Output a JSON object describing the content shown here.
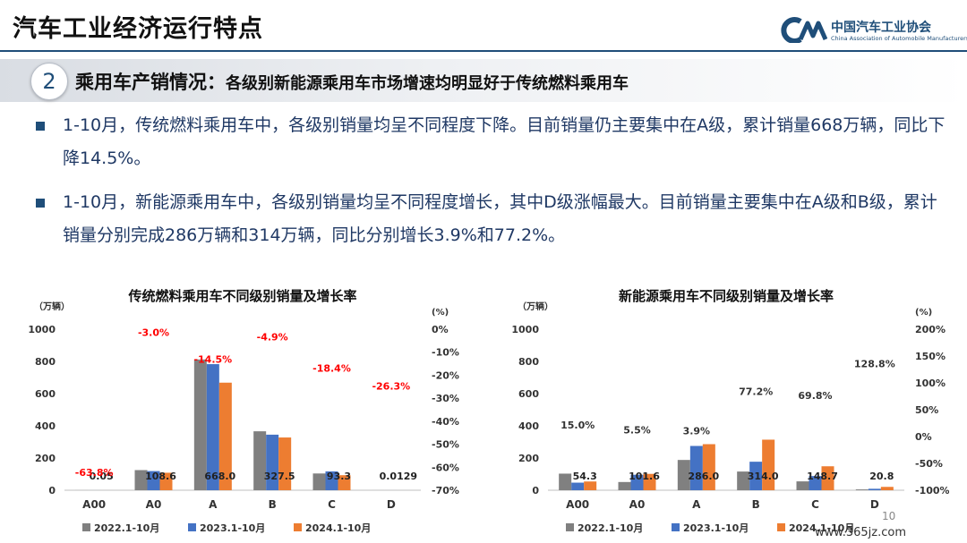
{
  "header": {
    "title": "汽车工业经济运行特点",
    "logo_cn": "中国汽车工业协会",
    "logo_en": "China Association of Automobile Manufacturers"
  },
  "section": {
    "number": "2",
    "title": "乘用车产销情况：",
    "subtitle": "各级别新能源乘用车市场增速均明显好于传统燃料乘用车"
  },
  "bullets": [
    "1-10月，传统燃料乘用车中，各级别销量均呈不同程度下降。目前销量仍主要集中在A级，累计销量668万辆，同比下降14.5%。",
    "1-10月，新能源乘用车中，各级别销量均呈不同程度增长，其中D级涨幅最大。目前销量主要集中在A级和B级，累计销量分别完成286万辆和314万辆，同比分别增长3.9%和77.2%。"
  ],
  "colors": {
    "s2022": "#808080",
    "s2023": "#4472c4",
    "s2024": "#ed7d31",
    "growth_label": "#ff0000",
    "heading": "#1f4e79"
  },
  "page_number": "10",
  "watermark": "www.365jz.com",
  "chart_data": [
    {
      "type": "bar",
      "title": "传统燃料乘用车不同级别销量及增长率",
      "ylabel": "（万辆）",
      "y2label": "(%)",
      "ylim": [
        0,
        1000
      ],
      "yticks": [
        "0",
        "200",
        "400",
        "600",
        "800",
        "1000"
      ],
      "y2lim": [
        -70,
        0
      ],
      "y2ticks": [
        "-70%",
        "-60%",
        "-50%",
        "-40%",
        "-30%",
        "-20%",
        "-10%",
        "0%"
      ],
      "categories": [
        "A00",
        "A0",
        "A",
        "B",
        "C",
        "D"
      ],
      "series": [
        {
          "name": "2022.1-10月",
          "values": [
            0.2,
            125,
            812,
            366,
            104,
            0.03
          ]
        },
        {
          "name": "2023.1-10月",
          "values": [
            0.1,
            119,
            783,
            345,
            117,
            0.02
          ]
        },
        {
          "name": "2024.1-10月",
          "values": [
            0.05,
            108.6,
            668.0,
            327.5,
            93.3,
            0.0129
          ]
        }
      ],
      "value_labels": [
        "0.05",
        "108.6",
        "668.0",
        "327.5",
        "93.3",
        "0.0129"
      ],
      "growth_rates": [
        -63.8,
        -3.0,
        -14.5,
        -4.9,
        -18.4,
        -26.3
      ],
      "growth_labels": [
        "-63.8%",
        "-3.0%",
        "-14.5%",
        "-4.9%",
        "-18.4%",
        "-26.3%"
      ],
      "legend": "bottom"
    },
    {
      "type": "bar",
      "title": "新能源乘用车不同级别销量及增长率",
      "ylabel": "（万辆）",
      "y2label": "(%)",
      "ylim": [
        0,
        1000
      ],
      "yticks": [
        "0",
        "200",
        "400",
        "600",
        "800",
        "1000"
      ],
      "y2lim": [
        -100,
        200
      ],
      "y2ticks": [
        "-100%",
        "-50%",
        "0%",
        "50%",
        "100%",
        "150%",
        "200%"
      ],
      "categories": [
        "A00",
        "A0",
        "A",
        "B",
        "C",
        "D"
      ],
      "series": [
        {
          "name": "2022.1-10月",
          "values": [
            103,
            51,
            188,
            116,
            55,
            5
          ]
        },
        {
          "name": "2023.1-10月",
          "values": [
            47,
            96,
            275,
            177,
            88,
            9
          ]
        },
        {
          "name": "2024.1-10月",
          "values": [
            54.3,
            101.6,
            286.0,
            314.0,
            148.7,
            20.8
          ]
        }
      ],
      "value_labels": [
        "54.3",
        "101.6",
        "286.0",
        "314.0",
        "148.7",
        "20.8"
      ],
      "growth_rates": [
        15.0,
        5.5,
        3.9,
        77.2,
        69.8,
        128.8
      ],
      "growth_labels": [
        "15.0%",
        "5.5%",
        "3.9%",
        "77.2%",
        "69.8%",
        "128.8%"
      ],
      "legend": "bottom"
    }
  ]
}
